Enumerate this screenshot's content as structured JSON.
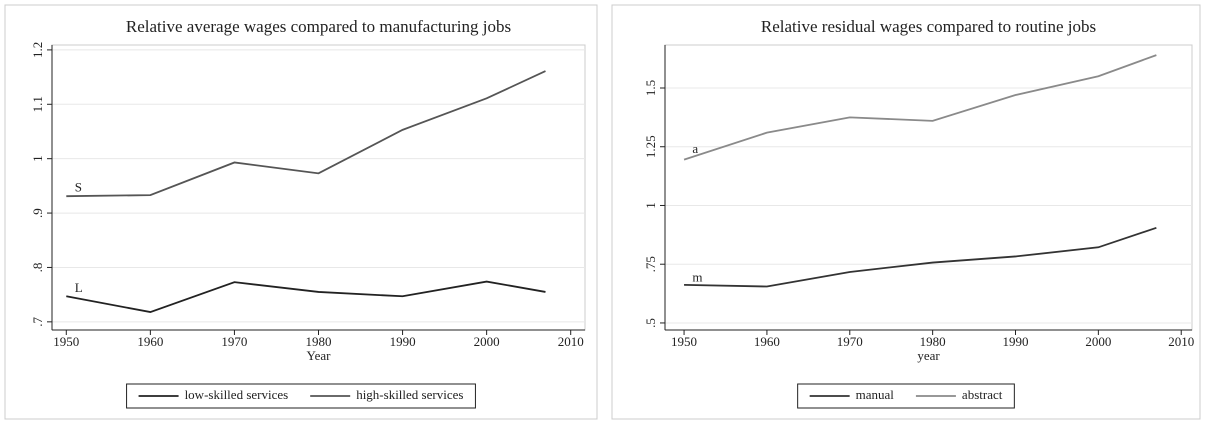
{
  "chart_data": [
    {
      "type": "line",
      "title": "Relative average wages compared to manufacturing jobs",
      "x_label": "Year",
      "x": [
        1950,
        1960,
        1970,
        1980,
        1990,
        2000,
        2007
      ],
      "series": [
        {
          "name": "low-skilled services",
          "color": "#222222",
          "values": [
            0.747,
            0.718,
            0.773,
            0.755,
            0.747,
            0.774,
            0.755
          ]
        },
        {
          "name": "high-skilled services",
          "color": "#555555",
          "values": [
            0.931,
            0.933,
            0.993,
            0.973,
            1.053,
            1.111,
            1.161
          ]
        }
      ],
      "annotations": [
        {
          "text": "S",
          "x": 1951,
          "y": 0.945
        },
        {
          "text": "L",
          "x": 1951,
          "y": 0.76
        }
      ],
      "xlim": [
        1948.3,
        2011.7
      ],
      "xticks": [
        1950,
        1960,
        1970,
        1980,
        1990,
        2000,
        2010
      ],
      "ylim": [
        0.685,
        1.209
      ],
      "yticks": [
        {
          "value": 0.7,
          "label": ".7"
        },
        {
          "value": 0.8,
          "label": ".8"
        },
        {
          "value": 0.9,
          "label": ".9"
        },
        1,
        1.1,
        1.2
      ],
      "grid": true
    },
    {
      "type": "line",
      "title": "Relative residual wages compared to routine jobs",
      "x_label": "year",
      "x": [
        1950,
        1960,
        1970,
        1980,
        1990,
        2000,
        2007
      ],
      "series": [
        {
          "name": "manual",
          "color": "#333333",
          "values": [
            0.662,
            0.655,
            0.717,
            0.757,
            0.783,
            0.822,
            0.905
          ]
        },
        {
          "name": "abstract",
          "color": "#8a8a8a",
          "values": [
            1.195,
            1.31,
            1.375,
            1.36,
            1.47,
            1.55,
            1.64
          ]
        }
      ],
      "annotations": [
        {
          "text": "a",
          "x": 1951,
          "y": 1.235
        },
        {
          "text": "m",
          "x": 1951,
          "y": 0.69
        }
      ],
      "xlim": [
        1947.7,
        2011.3
      ],
      "xticks": [
        1950,
        1960,
        1970,
        1980,
        1990,
        2000,
        2010
      ],
      "ylim": [
        0.47,
        1.683
      ],
      "yticks": [
        {
          "value": 0.5,
          "label": ".5"
        },
        {
          "value": 0.75,
          "label": ".75"
        },
        1,
        1.25,
        1.5
      ],
      "grid": true
    }
  ]
}
